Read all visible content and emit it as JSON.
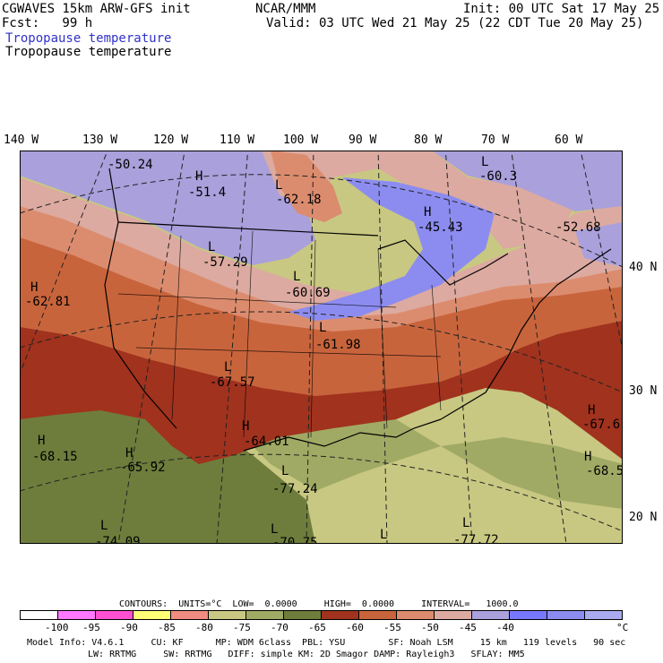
{
  "header": {
    "model": "CGWAVES 15km ARW-GFS init",
    "source": "NCAR/MMM",
    "init": "Init: 00 UTC Sat 17 May 25",
    "fcst": "Fcst:   99 h",
    "valid": "Valid: 03 UTC Wed 21 May 25 (22 CDT Tue 20 May 25)",
    "field_title_1": "Tropopause temperature",
    "field_title_2": "Tropopause temperature"
  },
  "axes": {
    "longitudes": [
      "140 W",
      "130 W",
      "120 W",
      "110 W",
      "100 W",
      "90 W",
      "80 W",
      "70 W",
      "60 W"
    ],
    "latitudes": [
      "40 N",
      "30 N",
      "20 N"
    ]
  },
  "map_labels": [
    {
      "letter": "",
      "value": "-50.24"
    },
    {
      "letter": "H",
      "value": "-51.4"
    },
    {
      "letter": "L",
      "value": "-62.18"
    },
    {
      "letter": "L",
      "value": "-60.3"
    },
    {
      "letter": "H",
      "value": "-45.43"
    },
    {
      "letter": "",
      "value": "-52.68"
    },
    {
      "letter": "L",
      "value": "-57.29"
    },
    {
      "letter": "H",
      "value": "-62.81"
    },
    {
      "letter": "L",
      "value": "-60.69"
    },
    {
      "letter": "L",
      "value": "-61.98"
    },
    {
      "letter": "L",
      "value": "-67.57"
    },
    {
      "letter": "H",
      "value": "-64.01"
    },
    {
      "letter": "H",
      "value": "-67.6"
    },
    {
      "letter": "H",
      "value": "-68.15"
    },
    {
      "letter": "H",
      "value": "-65.92"
    },
    {
      "letter": "H",
      "value": "-68.5"
    },
    {
      "letter": "L",
      "value": "-77.24"
    },
    {
      "letter": "L",
      "value": "-74.09"
    },
    {
      "letter": "L",
      "value": "-70.75"
    },
    {
      "letter": "L",
      "value": ""
    },
    {
      "letter": "L",
      "value": "-77.72"
    }
  ],
  "colorbar": {
    "contours": "CONTOURS:  UNITS=°C  LOW=  0.0000     HIGH=  0.0000     INTERVAL=   1000.0",
    "colors": [
      "#ffffff",
      "#ff78ff",
      "#ff50d2",
      "#ffff78",
      "#f08c82",
      "#c8c882",
      "#a0aa64",
      "#6e7d3c",
      "#a0321e",
      "#c8643c",
      "#dc8c6e",
      "#dcaaa0",
      "#aaa0dc",
      "#7878ff",
      "#8c8cf0",
      "#aaaaf0"
    ],
    "ticks": [
      "-100",
      "-95",
      "-90",
      "-85",
      "-80",
      "-75",
      "-70",
      "-65",
      "-60",
      "-55",
      "-50",
      "-45",
      "-40"
    ],
    "unit": "°C"
  },
  "footer": {
    "line1": "Model Info: V4.6.1     CU: KF      MP: WDM 6class  PBL: YSU        SF: Noah LSM     15 km   119 levels   90 sec",
    "line2": "LW: RRTMG     SW: RRTMG   DIFF: simple KM: 2D Smagor DAMP: Rayleigh3   SFLAY: MM5"
  }
}
